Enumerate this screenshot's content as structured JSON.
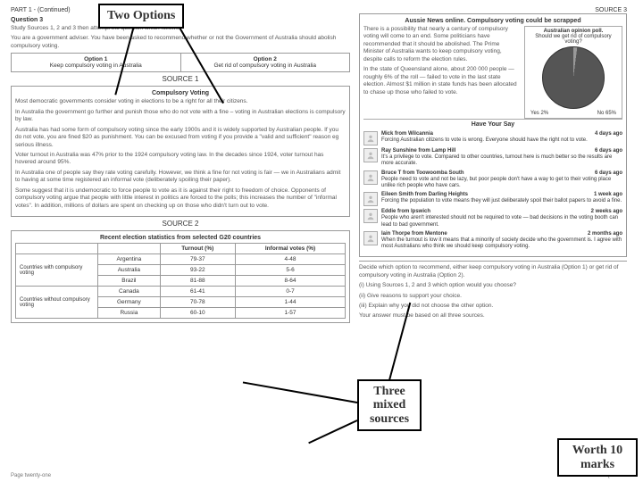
{
  "header": {
    "left": "PART 1 - (Continued)",
    "right": "SOURCE 3"
  },
  "question": {
    "number": "Question 3",
    "instruction": "Study Sources 1, 2 and 3 then attempt the question which follows.",
    "scenario": "You are a government adviser. You have been asked to recommend whether or not the Government of Australia should abolish compulsory voting."
  },
  "options": {
    "h1": "Option 1",
    "t1": "Keep compulsory voting in Australia",
    "h2": "Option 2",
    "t2": "Get rid of compulsory voting in Australia"
  },
  "source1": {
    "label": "SOURCE 1",
    "title": "Compulsory Voting",
    "p1": "Most democratic governments consider voting in elections to be a right for all their citizens.",
    "p2": "In Australia the government go further and punish those who do not vote with a fine – voting in Australian elections is compulsory by law.",
    "p3": "Australia has had some form of compulsory voting since the early 1900s and it is widely supported by Australian people. If you do not vote, you are fined $20 as punishment. You can be excused from voting if you provide a \"valid and sufficient\" reason eg serious illness.",
    "p4": "Voter turnout in Australia was 47% prior to the 1924 compulsory voting law. In the decades since 1924, voter turnout has hovered around 95%.",
    "p5": "In Australia one of people say they rate voting carefully. However, we think a fine for not voting is fair — we in Australians admit to having at some time registered an informal vote (deliberately spoiling their paper).",
    "p6": "Some suggest that it is undemocratic to force people to vote as it is against their right to freedom of choice. Opponents of compulsory voting argue that people with little interest in politics are forced to the polls; this increases the number of \"informal votes\". In addition, millions of dollars are spent on checking up on those who didn't turn out to vote."
  },
  "source2": {
    "label": "SOURCE 2",
    "title": "Recent election statistics from selected G20 countries",
    "cols": {
      "c1": "",
      "c2": "Turnout (%)",
      "c3": "Informal votes (%)"
    },
    "group1": "Countries with compulsory voting",
    "group2": "Countries without compulsory voting",
    "rows": [
      {
        "n": "Argentina",
        "t": "79-37",
        "i": "4-48"
      },
      {
        "n": "Australia",
        "t": "93-22",
        "i": "5-6"
      },
      {
        "n": "Brazil",
        "t": "81-88",
        "i": "8-64"
      },
      {
        "n": "Canada",
        "t": "61-41",
        "i": "0-7"
      },
      {
        "n": "Germany",
        "t": "70-78",
        "i": "1-44"
      },
      {
        "n": "Russia",
        "t": "60-10",
        "i": "1-57"
      }
    ]
  },
  "source3": {
    "headline": "Aussie News online. Compulsory voting could be scrapped",
    "para": "There is a possibility that nearly a century of compulsory voting will come to an end. Some politicians have recommended that it should be abolished. The Prime Minister of Australia wants to keep compulsory voting, despite calls to reform the election rules.",
    "para2": "In the state of Queensland alone, about 200 000 people — roughly 6% of the roll — failed to vote in the last state election. Almost $1 million in state funds has been allocated to chase up those who failed to vote.",
    "poll": {
      "title": "Australian opinion poll.",
      "q": "Should we get rid of compulsory voting?",
      "yes_label": "Yes",
      "yes_pct": "2%",
      "no_label": "No",
      "no_pct": "65%"
    },
    "hys": "Have Your Say",
    "comments": [
      {
        "name": "Mick from Wilcannia",
        "time": "4 days ago",
        "text": "Forcing Australian citizens to vote is wrong. Everyone should have the right not to vote."
      },
      {
        "name": "Ray Sunshine from Lamp Hill",
        "time": "6 days ago",
        "text": "It's a privilege to vote. Compared to other countries, turnout here is much better so the results are more accurate."
      },
      {
        "name": "Bruce T from Toowoomba South",
        "time": "6 days ago",
        "text": "People need to vote and not be lazy, but poor people don't have a way to get to their voting place unlike rich people who have cars."
      },
      {
        "name": "Eileen Smith from Darling Heights",
        "time": "1 week ago",
        "text": "Forcing the population to vote means they will just deliberately spoil their ballot papers to avoid a fine."
      },
      {
        "name": "Eddie from Ipswich",
        "time": "2 weeks ago",
        "text": "People who aren't interested should not be required to vote — bad decisions in the voting booth can lead to bad government."
      },
      {
        "name": "Iain Thorpe from Mentone",
        "time": "2 months ago",
        "text": "When the turnout is low it means that a minority of society decide who the government is. I agree with most Australians who think we should keep compulsory voting."
      }
    ]
  },
  "task": {
    "intro": "Decide which option to recommend, either keep compulsory voting in Australia (Option 1) or get rid of compulsory voting in Australia (Option 2).",
    "i": "(i)  Using Sources 1, 2 and 3 which option would you choose?",
    "ii": "(ii) Give reasons to support your choice.",
    "iii": "(iii) Explain why you did not choose the other option.",
    "note": "Your answer must be based on all three sources.",
    "marks": "10"
  },
  "footer": {
    "page": "Page twenty-one",
    "turn": "[Turn over"
  },
  "callouts": {
    "a": "Two Options",
    "b": "Three mixed sources",
    "c": "Worth 10 marks"
  }
}
